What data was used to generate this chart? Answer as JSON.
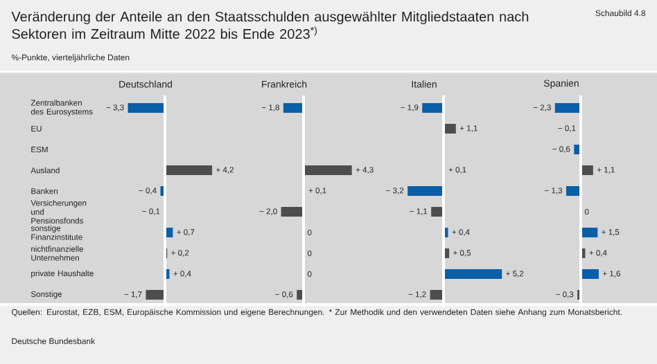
{
  "chart_data": [
    {
      "type": "other",
      "title": "Veränderung der Anteile an den Staatsschulden ausgewählter Mitgliedstaaten nach Sektoren im Zeitraum Mitte 2022 bis Ende 2023$^{*)}$",
      "subtitle": "%-Punkte, vierteljährliche Daten",
      "annotations": [
        "Schaubild 4.8",
        "Quellen: Eurostat, EZB, ESM, Europäische Kommission und eigene Berechnungen. * Zur Methodik und den verwendeten Daten siehe Anhang zum Monatsbericht.",
        "Deutsche Bundesbank"
      ]
    },
    {
      "type": "bar",
      "orientation": "horizontal",
      "title": "Deutschland",
      "tick_labels": "y",
      "categories": [
        "Zentralbanken des Eurosystems",
        "EU",
        "ESM",
        "Ausland",
        "Banken",
        "Versicherungen und Pensionsfonds",
        "sonstige Finanzinstitute",
        "nichtfinanzielle Unternehmen",
        "private Haushalte",
        "Sonstige"
      ],
      "values": [
        -3.3,
        null,
        null,
        4.2,
        -0.4,
        -0.1,
        0.7,
        0.2,
        0.4,
        -1.7
      ],
      "value_labels": [
        "− 3,3",
        null,
        null,
        "+ 4,2",
        "− 0,4",
        "− 0,1",
        "+ 0,7",
        "+ 0,2",
        "+ 0,4",
        "− 1,7"
      ],
      "colors": [
        "#0b5ea8",
        "#4d4d4d",
        "#0b5ea8",
        "#4d4d4d",
        "#0b5ea8",
        "#4d4d4d",
        "#0b5ea8",
        "#4d4d4d",
        "#0b5ea8",
        "#4d4d4d"
      ]
    },
    {
      "type": "bar",
      "orientation": "horizontal",
      "title": "Frankreich",
      "tick_labels": false,
      "categories": [
        null,
        null,
        null,
        null,
        null,
        null,
        null,
        null,
        null,
        null
      ],
      "values": [
        -1.8,
        null,
        null,
        4.3,
        0.1,
        -2.0,
        0,
        0,
        0,
        -0.6
      ],
      "value_labels": [
        "− 1,8",
        null,
        null,
        "+ 4,3",
        "+ 0,1",
        "− 2,0",
        "0",
        "0",
        "0",
        "− 0,6"
      ],
      "colors": [
        "#0b5ea8",
        "#4d4d4d",
        "#0b5ea8",
        "#4d4d4d",
        "#0b5ea8",
        "#4d4d4d",
        "#0b5ea8",
        "#4d4d4d",
        "#0b5ea8",
        "#4d4d4d"
      ]
    },
    {
      "type": "bar",
      "orientation": "horizontal",
      "title": "Italien",
      "tick_labels": false,
      "categories": [
        null,
        null,
        null,
        null,
        null,
        null,
        null,
        null,
        null,
        null
      ],
      "values": [
        -1.9,
        1.1,
        null,
        0.1,
        -3.2,
        -1.1,
        0.4,
        0.5,
        5.2,
        -1.2
      ],
      "value_labels": [
        "− 1,9",
        "+ 1,1",
        null,
        "+ 0,1",
        "− 3,2",
        "− 1,1",
        "+ 0,4",
        "+ 0,5",
        "+ 5,2",
        "− 1,2"
      ],
      "colors": [
        "#0b5ea8",
        "#4d4d4d",
        "#0b5ea8",
        "#4d4d4d",
        "#0b5ea8",
        "#4d4d4d",
        "#0b5ea8",
        "#4d4d4d",
        "#0b5ea8",
        "#4d4d4d"
      ]
    },
    {
      "type": "bar",
      "orientation": "horizontal",
      "title": "Spanien",
      "tick_labels": false,
      "categories": [
        null,
        null,
        null,
        null,
        null,
        null,
        null,
        null,
        null,
        null
      ],
      "values": [
        -2.3,
        -0.1,
        -0.6,
        1.1,
        -1.3,
        0,
        1.5,
        0.4,
        1.6,
        -0.3
      ],
      "value_labels": [
        "− 2,3",
        "− 0,1",
        "− 0,6",
        "+ 1,1",
        "− 1,3",
        "0",
        "+ 1,5",
        "+ 0,4",
        "+ 1,6",
        "− 0,3"
      ],
      "colors": [
        "#0b5ea8",
        "#4d4d4d",
        "#0b5ea8",
        "#4d4d4d",
        "#0b5ea8",
        "#4d4d4d",
        "#0b5ea8",
        "#4d4d4d",
        "#0b5ea8",
        "#4d4d4d"
      ]
    }
  ]
}
